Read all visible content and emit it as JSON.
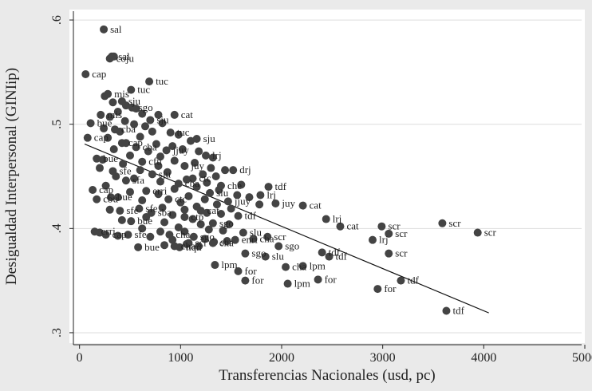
{
  "chart_data": {
    "type": "scatter",
    "title": "",
    "xlabel": "Transferencias Nacionales (usd, pc)",
    "ylabel": "Desigualdad Interpersonal (GINIip)",
    "xlim": [
      -100,
      5000
    ],
    "ylim": [
      0.29,
      0.61
    ],
    "x_ticks": [
      0,
      1000,
      2000,
      3000,
      4000,
      5000
    ],
    "x_tick_labels": [
      "0",
      "1000",
      "2000",
      "3000",
      "4000",
      "5000"
    ],
    "y_ticks": [
      0.3,
      0.4,
      0.5,
      0.6
    ],
    "y_tick_labels": [
      ".3",
      ".4",
      ".5",
      ".6"
    ],
    "grid": "horizontal",
    "legend": "none",
    "fit_line": {
      "x": [
        50,
        4050
      ],
      "y": [
        0.481,
        0.319
      ]
    },
    "colors": {
      "background": "#eaeaea",
      "plot_area": "#ffffff",
      "point": "#444444",
      "line": "#111111",
      "grid": "#dddddd"
    },
    "points": [
      {
        "x": 240,
        "y": 0.591,
        "label": "sal"
      },
      {
        "x": 320,
        "y": 0.565,
        "label": "sal"
      },
      {
        "x": 300,
        "y": 0.563,
        "label": "coju"
      },
      {
        "x": 60,
        "y": 0.548,
        "label": "cap"
      },
      {
        "x": 690,
        "y": 0.541,
        "label": "tuc"
      },
      {
        "x": 510,
        "y": 0.533,
        "label": "tuc"
      },
      {
        "x": 280,
        "y": 0.529,
        "label": "mis"
      },
      {
        "x": 420,
        "y": 0.522,
        "label": "sju"
      },
      {
        "x": 520,
        "y": 0.516,
        "label": "sgo"
      },
      {
        "x": 210,
        "y": 0.509,
        "label": "mis"
      },
      {
        "x": 940,
        "y": 0.509,
        "label": "cat"
      },
      {
        "x": 700,
        "y": 0.504,
        "label": "sju"
      },
      {
        "x": 110,
        "y": 0.501,
        "label": "bue"
      },
      {
        "x": 350,
        "y": 0.495,
        "label": "cba"
      },
      {
        "x": 900,
        "y": 0.492,
        "label": "tuc"
      },
      {
        "x": 80,
        "y": 0.487,
        "label": "cap"
      },
      {
        "x": 1160,
        "y": 0.486,
        "label": "sju"
      },
      {
        "x": 420,
        "y": 0.482,
        "label": "cap"
      },
      {
        "x": 560,
        "y": 0.478,
        "label": "cba"
      },
      {
        "x": 860,
        "y": 0.475,
        "label": "jjuy"
      },
      {
        "x": 1250,
        "y": 0.47,
        "label": "lrj"
      },
      {
        "x": 170,
        "y": 0.467,
        "label": "bue"
      },
      {
        "x": 620,
        "y": 0.464,
        "label": "cfu"
      },
      {
        "x": 1040,
        "y": 0.46,
        "label": "juy"
      },
      {
        "x": 1520,
        "y": 0.456,
        "label": "drj"
      },
      {
        "x": 330,
        "y": 0.455,
        "label": "sfe"
      },
      {
        "x": 720,
        "y": 0.452,
        "label": "sju"
      },
      {
        "x": 1120,
        "y": 0.448,
        "label": "ctc"
      },
      {
        "x": 460,
        "y": 0.446,
        "label": "sfa"
      },
      {
        "x": 980,
        "y": 0.443,
        "label": "cba"
      },
      {
        "x": 1400,
        "y": 0.441,
        "label": "che"
      },
      {
        "x": 1870,
        "y": 0.44,
        "label": "tdf"
      },
      {
        "x": 130,
        "y": 0.437,
        "label": "cap"
      },
      {
        "x": 660,
        "y": 0.436,
        "label": "erri"
      },
      {
        "x": 1290,
        "y": 0.434,
        "label": "slu"
      },
      {
        "x": 1790,
        "y": 0.432,
        "label": "lrj"
      },
      {
        "x": 310,
        "y": 0.43,
        "label": "bue"
      },
      {
        "x": 880,
        "y": 0.428,
        "label": "ctc"
      },
      {
        "x": 1470,
        "y": 0.426,
        "label": "jjuy"
      },
      {
        "x": 1940,
        "y": 0.424,
        "label": "juy"
      },
      {
        "x": 2210,
        "y": 0.422,
        "label": "cat"
      },
      {
        "x": 170,
        "y": 0.428,
        "label": "cbu"
      },
      {
        "x": 590,
        "y": 0.419,
        "label": "sfe"
      },
      {
        "x": 1200,
        "y": 0.417,
        "label": "cat"
      },
      {
        "x": 400,
        "y": 0.417,
        "label": "sfe"
      },
      {
        "x": 710,
        "y": 0.415,
        "label": "sba"
      },
      {
        "x": 1570,
        "y": 0.412,
        "label": "tdf"
      },
      {
        "x": 1040,
        "y": 0.411,
        "label": "ctp"
      },
      {
        "x": 510,
        "y": 0.407,
        "label": "bue"
      },
      {
        "x": 1320,
        "y": 0.405,
        "label": "sgo"
      },
      {
        "x": 2440,
        "y": 0.409,
        "label": "lrj"
      },
      {
        "x": 2580,
        "y": 0.402,
        "label": "cat"
      },
      {
        "x": 2990,
        "y": 0.402,
        "label": "scr"
      },
      {
        "x": 3590,
        "y": 0.405,
        "label": "scr"
      },
      {
        "x": 3940,
        "y": 0.396,
        "label": "scr"
      },
      {
        "x": 3060,
        "y": 0.395,
        "label": "scr"
      },
      {
        "x": 2900,
        "y": 0.389,
        "label": "lrj"
      },
      {
        "x": 150,
        "y": 0.397,
        "label": "erri"
      },
      {
        "x": 260,
        "y": 0.394,
        "label": "cap"
      },
      {
        "x": 480,
        "y": 0.394,
        "label": "sfe"
      },
      {
        "x": 890,
        "y": 0.394,
        "label": "cha"
      },
      {
        "x": 1130,
        "y": 0.392,
        "label": "sgo"
      },
      {
        "x": 1620,
        "y": 0.396,
        "label": "slu"
      },
      {
        "x": 1860,
        "y": 0.392,
        "label": "scr"
      },
      {
        "x": 1540,
        "y": 0.389,
        "label": "enri"
      },
      {
        "x": 1720,
        "y": 0.39,
        "label": "cha"
      },
      {
        "x": 1330,
        "y": 0.387,
        "label": "scr"
      },
      {
        "x": 1080,
        "y": 0.386,
        "label": "scr"
      },
      {
        "x": 1320,
        "y": 0.386,
        "label": "cha"
      },
      {
        "x": 580,
        "y": 0.382,
        "label": "bue"
      },
      {
        "x": 940,
        "y": 0.383,
        "label": "cha"
      },
      {
        "x": 990,
        "y": 0.382,
        "label": "nqn"
      },
      {
        "x": 1970,
        "y": 0.383,
        "label": "sgo"
      },
      {
        "x": 1640,
        "y": 0.376,
        "label": "sgo"
      },
      {
        "x": 1840,
        "y": 0.373,
        "label": "slu"
      },
      {
        "x": 2400,
        "y": 0.377,
        "label": "tdf"
      },
      {
        "x": 2470,
        "y": 0.373,
        "label": "tdf"
      },
      {
        "x": 3060,
        "y": 0.376,
        "label": "scr"
      },
      {
        "x": 1340,
        "y": 0.365,
        "label": "lpm"
      },
      {
        "x": 2210,
        "y": 0.364,
        "label": "lpm"
      },
      {
        "x": 2040,
        "y": 0.363,
        "label": "cha"
      },
      {
        "x": 1570,
        "y": 0.359,
        "label": "for"
      },
      {
        "x": 1640,
        "y": 0.35,
        "label": "for"
      },
      {
        "x": 2360,
        "y": 0.351,
        "label": "for"
      },
      {
        "x": 2060,
        "y": 0.347,
        "label": "lpm"
      },
      {
        "x": 3180,
        "y": 0.35,
        "label": "tdf"
      },
      {
        "x": 2950,
        "y": 0.342,
        "label": "for"
      },
      {
        "x": 3630,
        "y": 0.321,
        "label": "tdf"
      }
    ],
    "unlabeled_points": [
      {
        "x": 340,
        "y": 0.565
      },
      {
        "x": 250,
        "y": 0.527
      },
      {
        "x": 330,
        "y": 0.521
      },
      {
        "x": 460,
        "y": 0.518
      },
      {
        "x": 560,
        "y": 0.515
      },
      {
        "x": 380,
        "y": 0.512
      },
      {
        "x": 620,
        "y": 0.51
      },
      {
        "x": 300,
        "y": 0.507
      },
      {
        "x": 780,
        "y": 0.509
      },
      {
        "x": 450,
        "y": 0.503
      },
      {
        "x": 540,
        "y": 0.5
      },
      {
        "x": 650,
        "y": 0.498
      },
      {
        "x": 820,
        "y": 0.501
      },
      {
        "x": 240,
        "y": 0.496
      },
      {
        "x": 400,
        "y": 0.493
      },
      {
        "x": 720,
        "y": 0.493
      },
      {
        "x": 980,
        "y": 0.49
      },
      {
        "x": 280,
        "y": 0.487
      },
      {
        "x": 600,
        "y": 0.488
      },
      {
        "x": 1100,
        "y": 0.484
      },
      {
        "x": 460,
        "y": 0.482
      },
      {
        "x": 760,
        "y": 0.481
      },
      {
        "x": 920,
        "y": 0.479
      },
      {
        "x": 1020,
        "y": 0.476
      },
      {
        "x": 340,
        "y": 0.476
      },
      {
        "x": 680,
        "y": 0.474
      },
      {
        "x": 1180,
        "y": 0.474
      },
      {
        "x": 500,
        "y": 0.47
      },
      {
        "x": 800,
        "y": 0.469
      },
      {
        "x": 1320,
        "y": 0.468
      },
      {
        "x": 230,
        "y": 0.466
      },
      {
        "x": 940,
        "y": 0.465
      },
      {
        "x": 1140,
        "y": 0.463
      },
      {
        "x": 430,
        "y": 0.462
      },
      {
        "x": 780,
        "y": 0.46
      },
      {
        "x": 1300,
        "y": 0.458
      },
      {
        "x": 1440,
        "y": 0.456
      },
      {
        "x": 600,
        "y": 0.456
      },
      {
        "x": 200,
        "y": 0.458
      },
      {
        "x": 870,
        "y": 0.454
      },
      {
        "x": 1220,
        "y": 0.452
      },
      {
        "x": 1350,
        "y": 0.45
      },
      {
        "x": 360,
        "y": 0.45
      },
      {
        "x": 540,
        "y": 0.448
      },
      {
        "x": 1060,
        "y": 0.447
      },
      {
        "x": 800,
        "y": 0.445
      },
      {
        "x": 1260,
        "y": 0.444
      },
      {
        "x": 1600,
        "y": 0.442
      },
      {
        "x": 260,
        "y": 0.441
      },
      {
        "x": 1160,
        "y": 0.44
      },
      {
        "x": 940,
        "y": 0.438
      },
      {
        "x": 1380,
        "y": 0.437
      },
      {
        "x": 500,
        "y": 0.435
      },
      {
        "x": 780,
        "y": 0.433
      },
      {
        "x": 1560,
        "y": 0.432
      },
      {
        "x": 1080,
        "y": 0.431
      },
      {
        "x": 380,
        "y": 0.43
      },
      {
        "x": 1680,
        "y": 0.43
      },
      {
        "x": 1240,
        "y": 0.428
      },
      {
        "x": 620,
        "y": 0.427
      },
      {
        "x": 1000,
        "y": 0.425
      },
      {
        "x": 1360,
        "y": 0.423
      },
      {
        "x": 1780,
        "y": 0.423
      },
      {
        "x": 1160,
        "y": 0.421
      },
      {
        "x": 820,
        "y": 0.42
      },
      {
        "x": 1500,
        "y": 0.419
      },
      {
        "x": 300,
        "y": 0.418
      },
      {
        "x": 1040,
        "y": 0.418
      },
      {
        "x": 1260,
        "y": 0.415
      },
      {
        "x": 920,
        "y": 0.413
      },
      {
        "x": 1400,
        "y": 0.414
      },
      {
        "x": 660,
        "y": 0.411
      },
      {
        "x": 1120,
        "y": 0.409
      },
      {
        "x": 420,
        "y": 0.408
      },
      {
        "x": 840,
        "y": 0.406
      },
      {
        "x": 1200,
        "y": 0.404
      },
      {
        "x": 1480,
        "y": 0.404
      },
      {
        "x": 980,
        "y": 0.401
      },
      {
        "x": 620,
        "y": 0.4
      },
      {
        "x": 1280,
        "y": 0.399
      },
      {
        "x": 1420,
        "y": 0.398
      },
      {
        "x": 800,
        "y": 0.397
      },
      {
        "x": 200,
        "y": 0.396
      },
      {
        "x": 1040,
        "y": 0.397
      },
      {
        "x": 380,
        "y": 0.393
      },
      {
        "x": 700,
        "y": 0.392
      },
      {
        "x": 1240,
        "y": 0.39
      },
      {
        "x": 920,
        "y": 0.389
      },
      {
        "x": 1460,
        "y": 0.388
      },
      {
        "x": 1060,
        "y": 0.385
      },
      {
        "x": 840,
        "y": 0.384
      },
      {
        "x": 1180,
        "y": 0.383
      }
    ]
  }
}
